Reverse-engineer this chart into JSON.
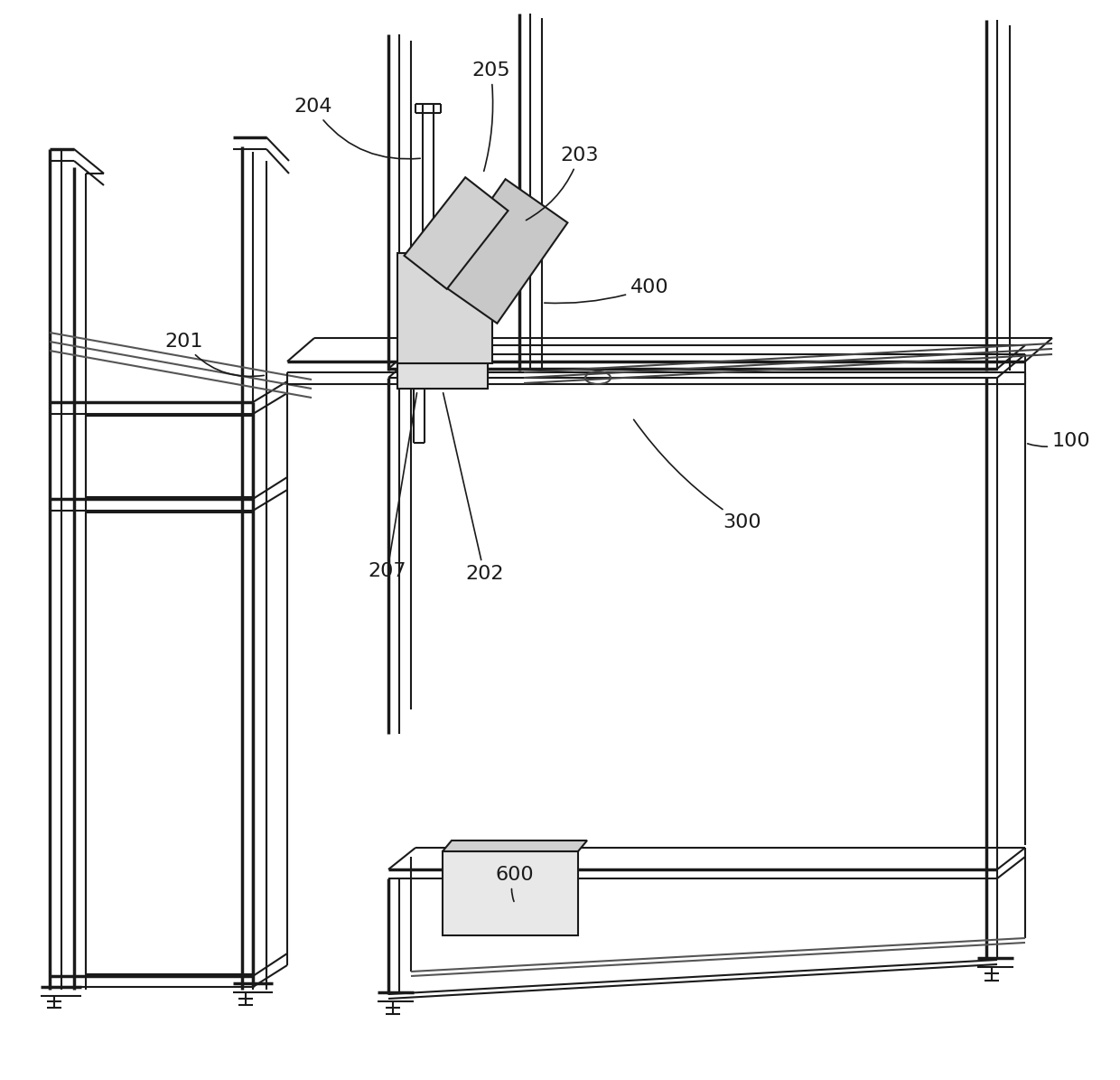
{
  "bg_color": "#ffffff",
  "line_color": "#1a1a1a",
  "line_width": 1.5,
  "thick_lw": 2.5,
  "fontsize": 16
}
